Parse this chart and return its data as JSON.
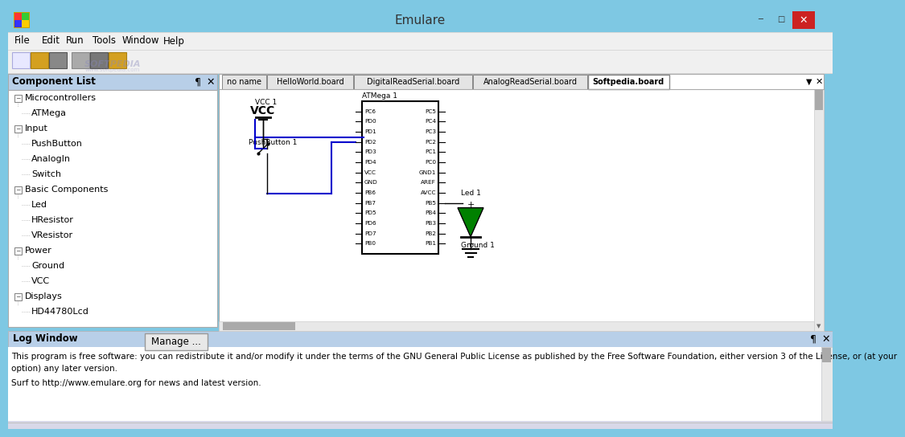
{
  "title": "Emulare",
  "bg_titlebar": "#7ec8e3",
  "bg_menu": "#f0f0f0",
  "bg_toolbar": "#f0f0f0",
  "bg_main": "#d0dff0",
  "bg_panel_header": "#b8cfe8",
  "bg_canvas": "#ffffff",
  "menu_items": [
    "File",
    "Edit",
    "Run",
    "Tools",
    "Window",
    "Help"
  ],
  "menu_x": [
    8,
    42,
    72,
    105,
    142,
    193
  ],
  "tabs": [
    "no name",
    "HelloWorld.board",
    "DigitalReadSerial.board",
    "AnalogReadSerial.board",
    "Softpedia.board"
  ],
  "active_tab": "Softpedia.board",
  "component_list_title": "Component List",
  "component_tree": [
    {
      "label": "Microcontrollers",
      "level": 0
    },
    {
      "label": "ATMega",
      "level": 1
    },
    {
      "label": "Input",
      "level": 0
    },
    {
      "label": "PushButton",
      "level": 1
    },
    {
      "label": "AnalogIn",
      "level": 1
    },
    {
      "label": "Switch",
      "level": 1
    },
    {
      "label": "Basic Components",
      "level": 0
    },
    {
      "label": "Led",
      "level": 1
    },
    {
      "label": "HResistor",
      "level": 1
    },
    {
      "label": "VResistor",
      "level": 1
    },
    {
      "label": "Power",
      "level": 0
    },
    {
      "label": "Ground",
      "level": 1
    },
    {
      "label": "VCC",
      "level": 1
    },
    {
      "label": "Displays",
      "level": 0
    },
    {
      "label": "HD44780Lcd",
      "level": 1
    }
  ],
  "log_title": "Log Window",
  "log_text1": "This program is free software: you can redistribute it and/or modify it under the terms of the GNU General Public License as published by the Free Software Foundation, either version 3 of the License, or (at your",
  "log_text2": "option) any later version.",
  "log_text3": "Surf to http://www.emulare.org for news and latest version.",
  "atmega_pins_left": [
    "PC6",
    "PD0",
    "PD1",
    "PD2",
    "PD3",
    "PD4",
    "VCC",
    "GND",
    "PB6",
    "PB7",
    "PD5",
    "PD6",
    "PD7",
    "PB0"
  ],
  "atmega_pins_right": [
    "PC5",
    "PC4",
    "PC3",
    "PC2",
    "PC1",
    "PC0",
    "GND1",
    "AREF",
    "AVCC",
    "PB5",
    "PB4",
    "PB3",
    "PB2",
    "PB1"
  ],
  "vcc_label": "VCC 1",
  "vcc_text": "VCC",
  "pushbutton_label": "PushButton 1",
  "atmega_label": "ATMega 1",
  "led_label": "Led 1",
  "ground_label": "Ground 1",
  "led_color": "#008000",
  "wire_color": "#0000cc",
  "softpedia_text": "SOFTPEDIA",
  "softpedia_url": "www.softpedia.com"
}
